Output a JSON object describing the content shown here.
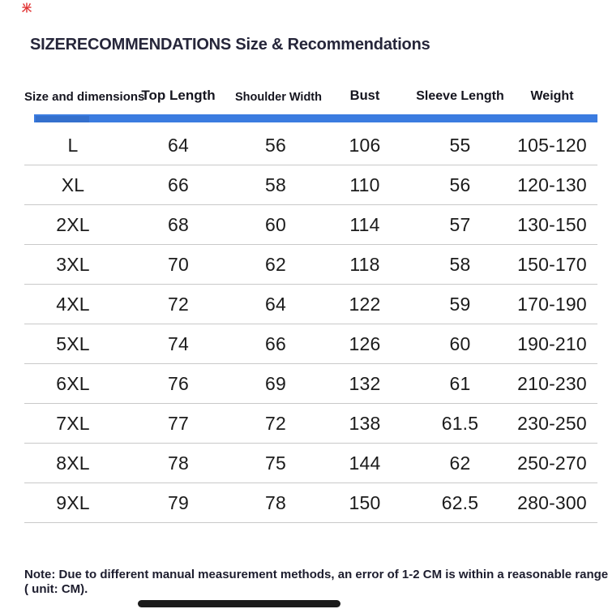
{
  "title": "SIZERECOMMENDATIONS Size & Recommendations",
  "watermark": {
    "top_left_mark": "米"
  },
  "table": {
    "headers": [
      "Size and dimensions",
      "Top Length",
      "Shoulder Width",
      "Bust",
      "Sleeve Length",
      "Weight"
    ],
    "rows": [
      [
        "L",
        "64",
        "56",
        "106",
        "55",
        "105-120"
      ],
      [
        "XL",
        "66",
        "58",
        "110",
        "56",
        "120-130"
      ],
      [
        "2XL",
        "68",
        "60",
        "114",
        "57",
        "130-150"
      ],
      [
        "3XL",
        "70",
        "62",
        "118",
        "58",
        "150-170"
      ],
      [
        "4XL",
        "72",
        "64",
        "122",
        "59",
        "170-190"
      ],
      [
        "5XL",
        "74",
        "66",
        "126",
        "60",
        "190-210"
      ],
      [
        "6XL",
        "76",
        "69",
        "132",
        "61",
        "210-230"
      ],
      [
        "7XL",
        "77",
        "72",
        "138",
        "61.5",
        "230-250"
      ],
      [
        "8XL",
        "78",
        "75",
        "144",
        "62",
        "250-270"
      ],
      [
        "9XL",
        "79",
        "78",
        "150",
        "62.5",
        "280-300"
      ]
    ]
  },
  "note": {
    "line1": "Note: Due to different manual measurement methods, an error of 1-2 CM is within a reasonable range (",
    "line2": "unit: CM)."
  },
  "colors": {
    "accent_blue": "#3b7ce0",
    "divider_gray": "#c9c9c9",
    "title_text": "#26263a",
    "bottom_bar": "#1b1b1b",
    "watermark_red": "#e03131"
  }
}
